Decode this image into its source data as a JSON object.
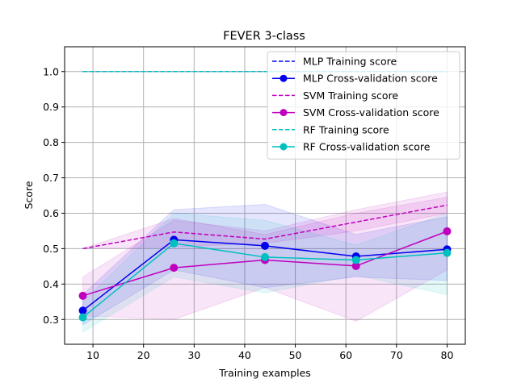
{
  "chart_data": {
    "type": "line",
    "title": "FEVER 3-class",
    "xlabel": "Training examples",
    "ylabel": "Score",
    "xlim": [
      4.4,
      83.6
    ],
    "ylim": [
      0.23,
      1.07
    ],
    "xticks": [
      10,
      20,
      30,
      40,
      50,
      60,
      70,
      80
    ],
    "yticks": [
      0.3,
      0.4,
      0.5,
      0.6,
      0.7,
      0.8,
      0.9,
      1.0
    ],
    "xtick_labels": [
      "10",
      "20",
      "30",
      "40",
      "50",
      "60",
      "70",
      "80"
    ],
    "ytick_labels": [
      "0.3",
      "0.4",
      "0.5",
      "0.6",
      "0.7",
      "0.8",
      "0.9",
      "1.0"
    ],
    "grid": true,
    "legend_position": "top-right",
    "x": [
      8,
      26,
      44,
      62,
      80
    ],
    "series": [
      {
        "name": "MLP Training score",
        "color": "#0000ee",
        "style": "dashed",
        "marker": "none",
        "values": [
          1.0,
          1.0,
          1.0,
          1.0,
          1.0
        ],
        "band_low": [
          1.0,
          1.0,
          1.0,
          1.0,
          1.0
        ],
        "band_high": [
          1.0,
          1.0,
          1.0,
          1.0,
          1.0
        ]
      },
      {
        "name": "MLP Cross-validation score",
        "color": "#0000ee",
        "style": "solid",
        "marker": "circle",
        "values": [
          0.325,
          0.525,
          0.508,
          0.478,
          0.498
        ],
        "band_low": [
          0.285,
          0.44,
          0.39,
          0.42,
          0.41
        ],
        "band_high": [
          0.37,
          0.61,
          0.625,
          0.54,
          0.59
        ]
      },
      {
        "name": "SVM Training score",
        "color": "#bf00bf",
        "style": "dashed",
        "marker": "none",
        "values": [
          0.5,
          0.547,
          0.527,
          0.575,
          0.623
        ],
        "band_low": [
          0.5,
          0.505,
          0.515,
          0.55,
          0.6
        ],
        "band_high": [
          0.5,
          0.585,
          0.54,
          0.6,
          0.645
        ]
      },
      {
        "name": "SVM Cross-validation score",
        "color": "#bf00bf",
        "style": "solid",
        "marker": "circle",
        "values": [
          0.367,
          0.446,
          0.468,
          0.451,
          0.549
        ],
        "band_low": [
          0.31,
          0.3,
          0.39,
          0.295,
          0.44
        ],
        "band_high": [
          0.42,
          0.58,
          0.55,
          0.61,
          0.66
        ]
      },
      {
        "name": "RF Training score",
        "color": "#00bfbf",
        "style": "dashed",
        "marker": "none",
        "values": [
          1.0,
          1.0,
          1.0,
          1.0,
          1.0
        ],
        "band_low": [
          1.0,
          1.0,
          1.0,
          1.0,
          1.0
        ],
        "band_high": [
          1.0,
          1.0,
          1.0,
          1.0,
          1.0
        ]
      },
      {
        "name": "RF Cross-validation score",
        "color": "#00bfbf",
        "style": "solid",
        "marker": "circle",
        "values": [
          0.306,
          0.515,
          0.476,
          0.468,
          0.488
        ],
        "band_low": [
          0.265,
          0.42,
          0.375,
          0.425,
          0.37
        ],
        "band_high": [
          0.35,
          0.6,
          0.58,
          0.51,
          0.6
        ]
      }
    ]
  }
}
